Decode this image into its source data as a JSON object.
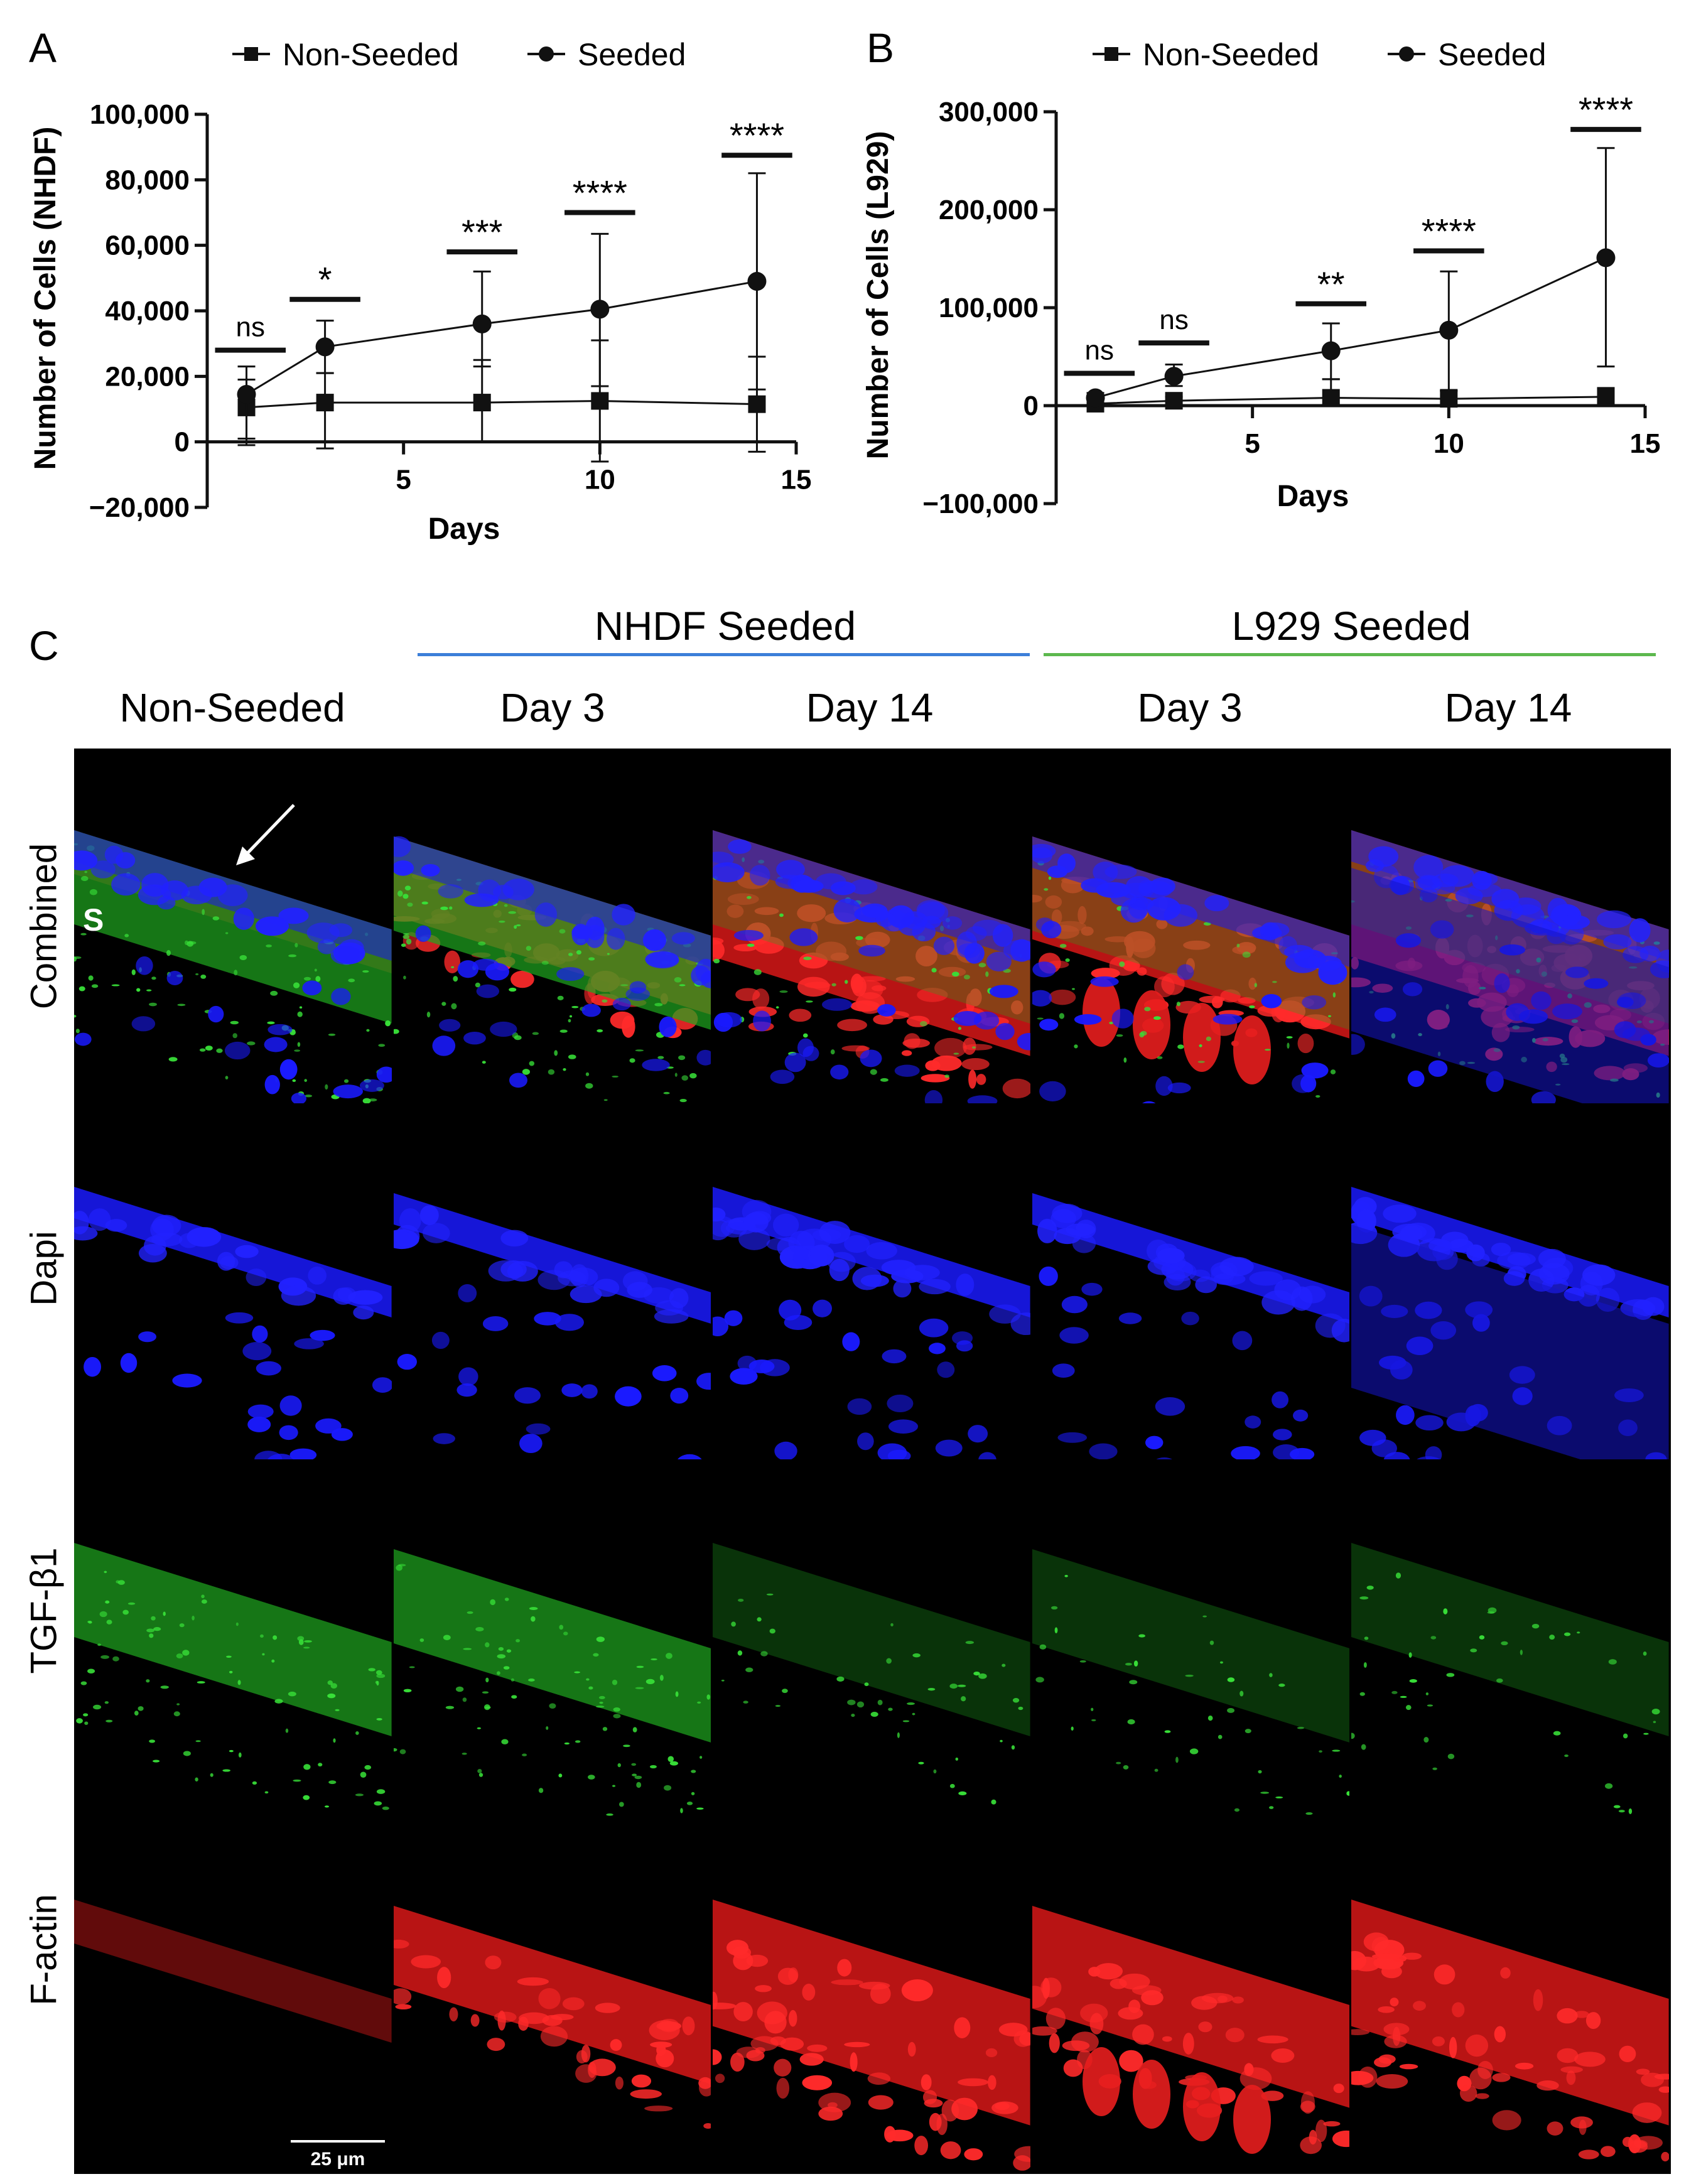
{
  "panels": {
    "A": "A",
    "B": "B",
    "C": "C"
  },
  "legend": {
    "non_seeded": "Non-Seeded",
    "seeded": "Seeded"
  },
  "chart_data": [
    {
      "type": "line",
      "panel": "A",
      "xlabel": "Days",
      "ylabel": "Number of Cells (NHDF)",
      "xlim": [
        0,
        15
      ],
      "ylim": [
        -20000,
        100000
      ],
      "x_ticks": [
        "5",
        "10",
        "15"
      ],
      "y_ticks": [
        "100,000",
        "80,000",
        "60,000",
        "40,000",
        "20,000",
        "0",
        "−20,000"
      ],
      "series": [
        {
          "name": "Non-Seeded",
          "x": [
            1,
            3,
            7,
            10,
            14
          ],
          "values": [
            10500,
            12000,
            12000,
            12500,
            11500
          ],
          "err_low": [
            -1000,
            -2000,
            0,
            -6000,
            -3000
          ],
          "err_high": [
            19000,
            21000,
            25000,
            31000,
            26000
          ],
          "marker": "square"
        },
        {
          "name": "Seeded",
          "x": [
            1,
            3,
            7,
            10,
            14
          ],
          "values": [
            14500,
            29000,
            36000,
            40500,
            49000
          ],
          "err_low": [
            1000,
            21000,
            23000,
            17000,
            16000
          ],
          "err_high": [
            23000,
            37000,
            52000,
            63500,
            82000
          ],
          "marker": "circle"
        }
      ],
      "significance": [
        {
          "label": "ns",
          "x_from": 0.2,
          "x_to": 2.0,
          "y": 28000
        },
        {
          "label": "*",
          "x_from": 2.1,
          "x_to": 3.9,
          "y": 43500
        },
        {
          "label": "***",
          "x_from": 6.1,
          "x_to": 7.9,
          "y": 58000
        },
        {
          "label": "****",
          "x_from": 9.1,
          "x_to": 10.9,
          "y": 70000
        },
        {
          "label": "****",
          "x_from": 13.1,
          "x_to": 14.9,
          "y": 87500
        }
      ]
    },
    {
      "type": "line",
      "panel": "B",
      "xlabel": "Days",
      "ylabel": "Number of Cells (L929)",
      "xlim": [
        0,
        15
      ],
      "ylim": [
        -100000,
        300000
      ],
      "x_ticks": [
        "5",
        "10",
        "15"
      ],
      "y_ticks": [
        "300,000",
        "200,000",
        "100,000",
        "0",
        "−100,000"
      ],
      "series": [
        {
          "name": "Non-Seeded",
          "x": [
            1,
            3,
            7,
            10,
            14
          ],
          "values": [
            2000,
            5000,
            8000,
            7000,
            9000
          ],
          "err_low": [
            0,
            0,
            0,
            0,
            0
          ],
          "err_high": [
            6000,
            9000,
            27000,
            15000,
            18000
          ],
          "marker": "square"
        },
        {
          "name": "Seeded",
          "x": [
            1,
            3,
            7,
            10,
            14
          ],
          "values": [
            8000,
            30000,
            56000,
            77000,
            151000
          ],
          "err_low": [
            3000,
            20000,
            27000,
            16000,
            40000
          ],
          "err_high": [
            13000,
            42000,
            84000,
            137000,
            263000
          ],
          "marker": "circle"
        }
      ],
      "significance": [
        {
          "label": "ns",
          "x_from": 0.2,
          "x_to": 2.0,
          "y": 33000
        },
        {
          "label": "ns",
          "x_from": 2.1,
          "x_to": 3.9,
          "y": 64000
        },
        {
          "label": "**",
          "x_from": 6.1,
          "x_to": 7.9,
          "y": 104000
        },
        {
          "label": "****",
          "x_from": 9.1,
          "x_to": 10.9,
          "y": 158000
        },
        {
          "label": "****",
          "x_from": 13.1,
          "x_to": 14.9,
          "y": 282000
        }
      ]
    }
  ],
  "micrographs": {
    "group_headers": [
      "NHDF Seeded",
      "L929 Seeded"
    ],
    "group_colors": [
      "#3c7fd9",
      "#5cb84e"
    ],
    "column_headers": [
      "Non-Seeded",
      "Day 3",
      "Day 14",
      "Day 3",
      "Day 14"
    ],
    "row_labels": [
      "Combined",
      "Dapi",
      "TGF-β1",
      "F-actin"
    ],
    "channel_colors": [
      "mixed",
      "#1a1aff",
      "#22c822",
      "#ff1a1a"
    ],
    "surface_label": "S",
    "scale_bar": "25 μm"
  }
}
